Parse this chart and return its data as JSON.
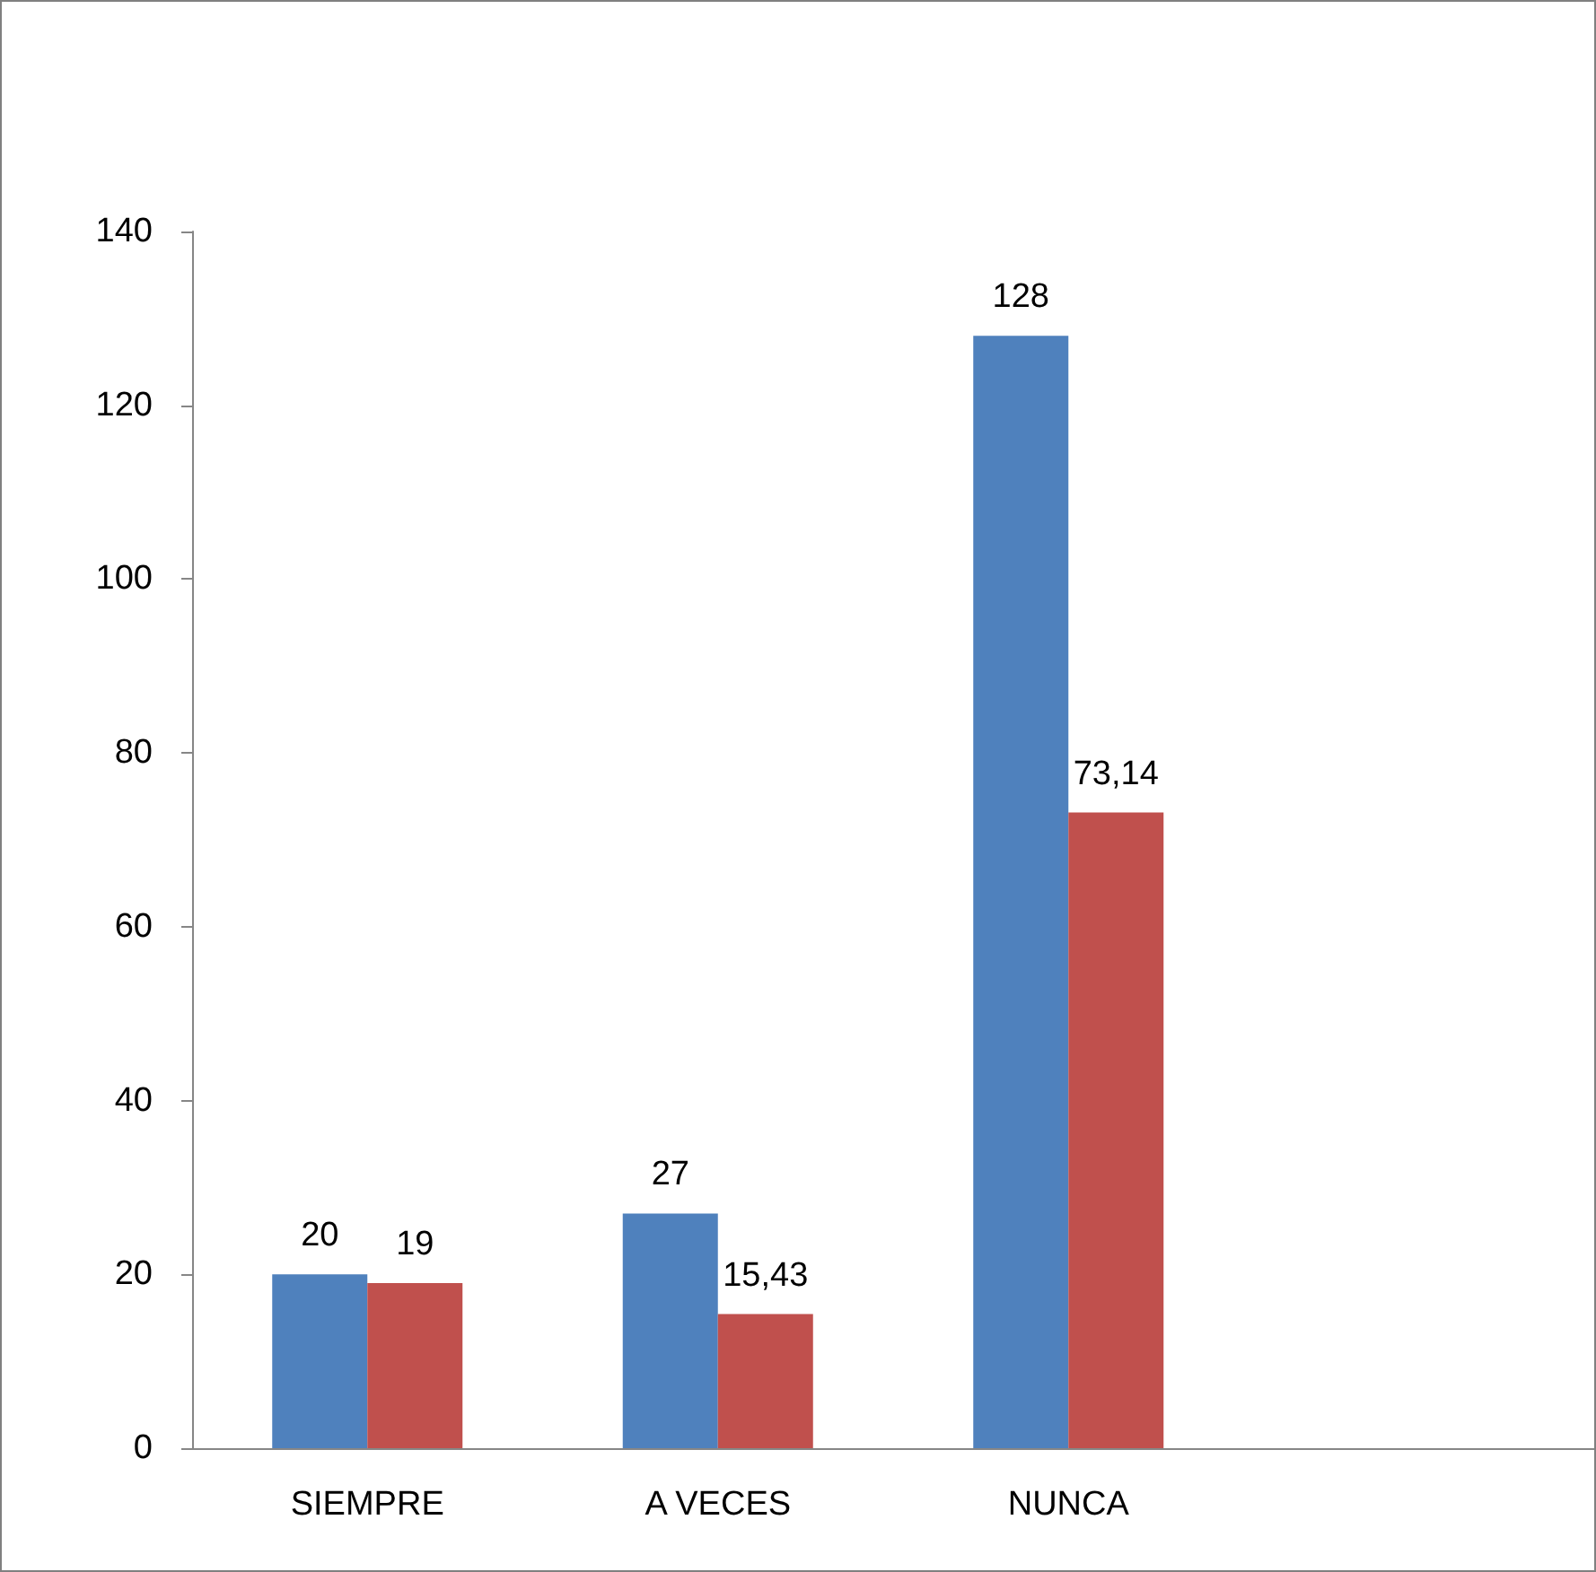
{
  "chart_data": {
    "type": "bar",
    "categories": [
      "SIEMPRE",
      "A VECES",
      "NUNCA",
      null
    ],
    "series": [
      {
        "color": "#4f81bd",
        "values": [
          20,
          27,
          128,
          null
        ],
        "value_labels": [
          "20",
          "27",
          "128",
          null
        ]
      },
      {
        "color": "#c0504d",
        "values": [
          19,
          15.43,
          73.14,
          null
        ],
        "value_labels": [
          "19",
          "15,43",
          "73,14",
          null
        ]
      }
    ],
    "ylim": [
      0,
      140
    ],
    "yticks": [
      0,
      20,
      40,
      60,
      80,
      100,
      120,
      140
    ],
    "grid": false
  }
}
